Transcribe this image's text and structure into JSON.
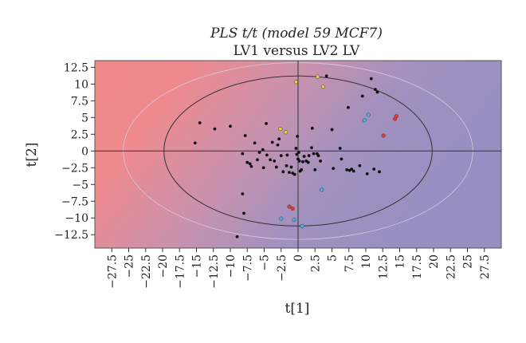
{
  "chart_data": {
    "type": "scatter",
    "title": "PLS t/t (model 59 MCF7)",
    "subtitle": "LV1 versus LV2 LV",
    "xlabel": "t[1]",
    "ylabel": "t[2]",
    "xlim": [
      -30,
      30
    ],
    "ylim": [
      -14.5,
      13.5
    ],
    "x_ticks": [
      -27.5,
      -25,
      -22.5,
      -20,
      -17.5,
      -15,
      -12.5,
      -10,
      -7.5,
      -5,
      -2.5,
      0,
      2.5,
      5,
      7.5,
      10,
      12.5,
      15,
      17.5,
      20,
      22.5,
      25,
      27.5
    ],
    "y_ticks": [
      12.5,
      10,
      7.5,
      5,
      2.5,
      0,
      -2.5,
      -5,
      -7.5,
      -10,
      -12.5
    ],
    "x_tick_labels": [
      "−27.5",
      "−25",
      "−22.5",
      "−20",
      "−17.5",
      "−15",
      "−12.5",
      "−10",
      "−7.5",
      "−5",
      "−2.5",
      "0",
      "2.5",
      "5",
      "7.5",
      "10",
      "12.5",
      "15",
      "17.5",
      "20",
      "22.5",
      "25",
      "27.5"
    ],
    "y_tick_labels": [
      "12.5",
      "10",
      "7.5",
      "5",
      "2.5",
      "0",
      "−2.5",
      "−5",
      "−7.5",
      "−10",
      "−12.5"
    ],
    "grid": false,
    "legend": "none",
    "background_gradient": [
      "#f08a8a",
      "#9a90c0"
    ],
    "ellipses": [
      {
        "rx": 19.8,
        "ry": 11.2,
        "color": "#333333"
      },
      {
        "rx": 25.8,
        "ry": 13.2,
        "color": "#d8c8dc"
      }
    ],
    "series": [
      {
        "color": "#111111",
        "points": [
          [
            -15.2,
            1.2
          ],
          [
            -14.5,
            4.2
          ],
          [
            -12.3,
            3.3
          ],
          [
            -10,
            3.7
          ],
          [
            -9,
            -12.8
          ],
          [
            -8.2,
            -6.4
          ],
          [
            -8,
            -9.3
          ],
          [
            -8.2,
            -0.4
          ],
          [
            -7.8,
            2.3
          ],
          [
            -7.5,
            -1.7
          ],
          [
            -7.1,
            -1.9
          ],
          [
            -6.9,
            -2.3
          ],
          [
            -6.4,
            1.2
          ],
          [
            -6,
            -1.3
          ],
          [
            -5.7,
            -0.2
          ],
          [
            -5.2,
            0.2
          ],
          [
            -5.1,
            -2.5
          ],
          [
            -4.7,
            4.1
          ],
          [
            -4.6,
            -0.6
          ],
          [
            -4.1,
            -1.3
          ],
          [
            -3.8,
            1.3
          ],
          [
            -3.5,
            -1.5
          ],
          [
            -3.2,
            -2.4
          ],
          [
            -3,
            0.9
          ],
          [
            -2.8,
            1.8
          ],
          [
            -2.5,
            -0.7
          ],
          [
            -2.2,
            -3.1
          ],
          [
            -1.7,
            -2.2
          ],
          [
            -1.6,
            -0.6
          ],
          [
            -1.3,
            -3.2
          ],
          [
            -1,
            -2.4
          ],
          [
            -0.8,
            -3.3
          ],
          [
            -0.5,
            -3.5
          ],
          [
            -0.3,
            0.4
          ],
          [
            -0.2,
            -0.5
          ],
          [
            -0.1,
            2.2
          ],
          [
            0,
            -1.2
          ],
          [
            0.1,
            -0.2
          ],
          [
            0.2,
            -1.5
          ],
          [
            0.3,
            -3
          ],
          [
            0.5,
            -2.8
          ],
          [
            0.7,
            -1.6
          ],
          [
            0.9,
            -0.8
          ],
          [
            1.2,
            -1.5
          ],
          [
            1.5,
            -1.7
          ],
          [
            1.6,
            -0.7
          ],
          [
            2,
            0.5
          ],
          [
            2.1,
            3.4
          ],
          [
            2.3,
            -0.4
          ],
          [
            2.5,
            -2.8
          ],
          [
            2.8,
            -0.4
          ],
          [
            3,
            -0.7
          ],
          [
            3.3,
            -1.5
          ],
          [
            4.2,
            11.2
          ],
          [
            5,
            3.2
          ],
          [
            5.2,
            -2.6
          ],
          [
            6.2,
            0.4
          ],
          [
            6.4,
            -1.2
          ],
          [
            7.2,
            -2.8
          ],
          [
            7.4,
            6.5
          ],
          [
            7.6,
            -2.9
          ],
          [
            7.9,
            -2.7
          ],
          [
            8.2,
            -3
          ],
          [
            9.1,
            -2.2
          ],
          [
            9.5,
            8.2
          ],
          [
            10.2,
            -3.4
          ],
          [
            10.8,
            10.8
          ],
          [
            11.2,
            -2.7
          ],
          [
            11.4,
            9.2
          ],
          [
            11.7,
            8.8
          ],
          [
            12,
            -3.1
          ]
        ]
      },
      {
        "color": "#e8d038",
        "points": [
          [
            -0.3,
            10.3
          ],
          [
            2.9,
            11.1
          ],
          [
            3.7,
            9.6
          ],
          [
            -2.6,
            3.3
          ],
          [
            -1.8,
            2.8
          ]
        ]
      },
      {
        "color": "#e04030",
        "points": [
          [
            -1.3,
            -8.3
          ],
          [
            -0.8,
            -8.6
          ],
          [
            12.6,
            2.3
          ],
          [
            14.3,
            4.8
          ],
          [
            14.5,
            5.2
          ]
        ]
      },
      {
        "color": "#50b0e0",
        "points": [
          [
            -2.5,
            -10.1
          ],
          [
            -0.6,
            -10.3
          ],
          [
            0.6,
            -11.2
          ],
          [
            3.5,
            -5.8
          ],
          [
            9.8,
            4.6
          ],
          [
            10.4,
            5.4
          ]
        ]
      }
    ]
  }
}
